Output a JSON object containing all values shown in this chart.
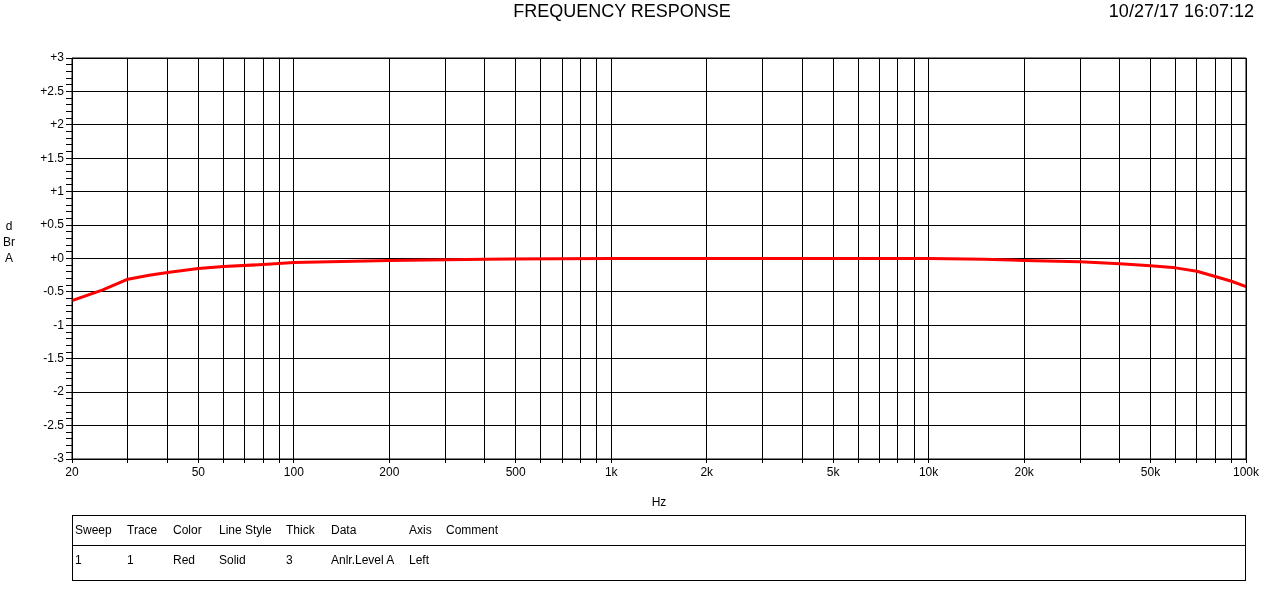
{
  "chart_data": {
    "type": "line",
    "title": "FREQUENCY RESPONSE",
    "subtitle": "10/27/17 16:07:12",
    "xlabel": "Hz",
    "ylabel": "dBrA",
    "x": [
      20,
      25,
      30,
      35,
      40,
      50,
      60,
      80,
      100,
      200,
      400,
      1000,
      5000,
      10000,
      15000,
      20000,
      30000,
      40000,
      50000,
      60000,
      70000,
      80000,
      90000,
      100000
    ],
    "series": [
      {
        "color": "#ff0000",
        "values": [
          -0.63,
          -0.47,
          -0.31,
          -0.25,
          -0.21,
          -0.15,
          -0.12,
          -0.09,
          -0.06,
          -0.03,
          -0.01,
          0,
          0,
          0,
          -0.01,
          -0.03,
          -0.05,
          -0.08,
          -0.11,
          -0.14,
          -0.19,
          -0.27,
          -0.34,
          -0.42
        ]
      }
    ],
    "log": "x",
    "xlim": [
      20,
      100000
    ],
    "ylim": [
      -3,
      3
    ],
    "xticks": [
      20,
      {
        "value": 30,
        "label": null
      },
      {
        "value": 40,
        "label": null
      },
      50,
      {
        "value": 60,
        "label": null
      },
      {
        "value": 70,
        "label": null
      },
      {
        "value": 80,
        "label": null
      },
      {
        "value": 90,
        "label": null
      },
      100,
      200,
      {
        "value": 300,
        "label": null
      },
      {
        "value": 400,
        "label": null
      },
      500,
      {
        "value": 600,
        "label": null
      },
      {
        "value": 700,
        "label": null
      },
      {
        "value": 800,
        "label": null
      },
      {
        "value": 900,
        "label": null
      },
      {
        "value": 1000,
        "label": "1k"
      },
      {
        "value": 2000,
        "label": "2k"
      },
      {
        "value": 3000,
        "label": null
      },
      {
        "value": 4000,
        "label": null
      },
      {
        "value": 5000,
        "label": "5k"
      },
      {
        "value": 6000,
        "label": null
      },
      {
        "value": 7000,
        "label": null
      },
      {
        "value": 8000,
        "label": null
      },
      {
        "value": 9000,
        "label": null
      },
      {
        "value": 10000,
        "label": "10k"
      },
      {
        "value": 20000,
        "label": "20k"
      },
      {
        "value": 30000,
        "label": null
      },
      {
        "value": 40000,
        "label": null
      },
      {
        "value": 50000,
        "label": "50k"
      },
      {
        "value": 60000,
        "label": null
      },
      {
        "value": 70000,
        "label": null
      },
      {
        "value": 80000,
        "label": null
      },
      {
        "value": 90000,
        "label": null
      },
      {
        "value": 100000,
        "label": "100k"
      }
    ],
    "yticks": [
      -3,
      {
        "value": -2.9,
        "label": null
      },
      {
        "value": -2.8,
        "label": null
      },
      {
        "value": -2.7,
        "label": null
      },
      {
        "value": -2.6,
        "label": null
      },
      -2.5,
      {
        "value": -2.4,
        "label": null
      },
      {
        "value": -2.3,
        "label": null
      },
      {
        "value": -2.2,
        "label": null
      },
      {
        "value": -2.1,
        "label": null
      },
      -2,
      {
        "value": -1.9,
        "label": null
      },
      {
        "value": -1.8,
        "label": null
      },
      {
        "value": -1.7,
        "label": null
      },
      {
        "value": -1.6,
        "label": null
      },
      -1.5,
      {
        "value": -1.4,
        "label": null
      },
      {
        "value": -1.3,
        "label": null
      },
      {
        "value": -1.2,
        "label": null
      },
      {
        "value": -1.1,
        "label": null
      },
      -1,
      {
        "value": -0.9,
        "label": null
      },
      {
        "value": -0.8,
        "label": null
      },
      {
        "value": -0.7,
        "label": null
      },
      {
        "value": -0.6,
        "label": null
      },
      -0.5,
      {
        "value": -0.4,
        "label": null
      },
      {
        "value": -0.3,
        "label": null
      },
      {
        "value": -0.2,
        "label": null
      },
      {
        "value": -0.1,
        "label": null
      },
      {
        "value": 0,
        "label": "+0"
      },
      {
        "value": 0.1,
        "label": null
      },
      {
        "value": 0.2,
        "label": null
      },
      {
        "value": 0.3,
        "label": null
      },
      {
        "value": 0.4,
        "label": null
      },
      {
        "value": 0.5,
        "label": "+0.5"
      },
      {
        "value": 0.6,
        "label": null
      },
      {
        "value": 0.7,
        "label": null
      },
      {
        "value": 0.8,
        "label": null
      },
      {
        "value": 0.9,
        "label": null
      },
      {
        "value": 1,
        "label": "+1"
      },
      {
        "value": 1.1,
        "label": null
      },
      {
        "value": 1.2,
        "label": null
      },
      {
        "value": 1.3,
        "label": null
      },
      {
        "value": 1.4,
        "label": null
      },
      {
        "value": 1.5,
        "label": "+1.5"
      },
      {
        "value": 1.6,
        "label": null
      },
      {
        "value": 1.7,
        "label": null
      },
      {
        "value": 1.8,
        "label": null
      },
      {
        "value": 1.9,
        "label": null
      },
      {
        "value": 2,
        "label": "+2"
      },
      {
        "value": 2.1,
        "label": null
      },
      {
        "value": 2.2,
        "label": null
      },
      {
        "value": 2.3,
        "label": null
      },
      {
        "value": 2.4,
        "label": null
      },
      {
        "value": 2.5,
        "label": "+2.5"
      },
      {
        "value": 2.6,
        "label": null
      },
      {
        "value": 2.7,
        "label": null
      },
      {
        "value": 2.8,
        "label": null
      },
      {
        "value": 2.9,
        "label": null
      },
      {
        "value": 3,
        "label": "+3"
      }
    ],
    "grid": true,
    "legend": false,
    "marker": "none",
    "line_style": "solid",
    "annotations": [
      "Sweep",
      "Trace",
      "Color",
      "Line Style",
      "Thick",
      "Data",
      "Axis",
      "Comment",
      "1",
      "1",
      "Red",
      "Solid",
      "3",
      "Anlr.Level A",
      "Left"
    ]
  }
}
